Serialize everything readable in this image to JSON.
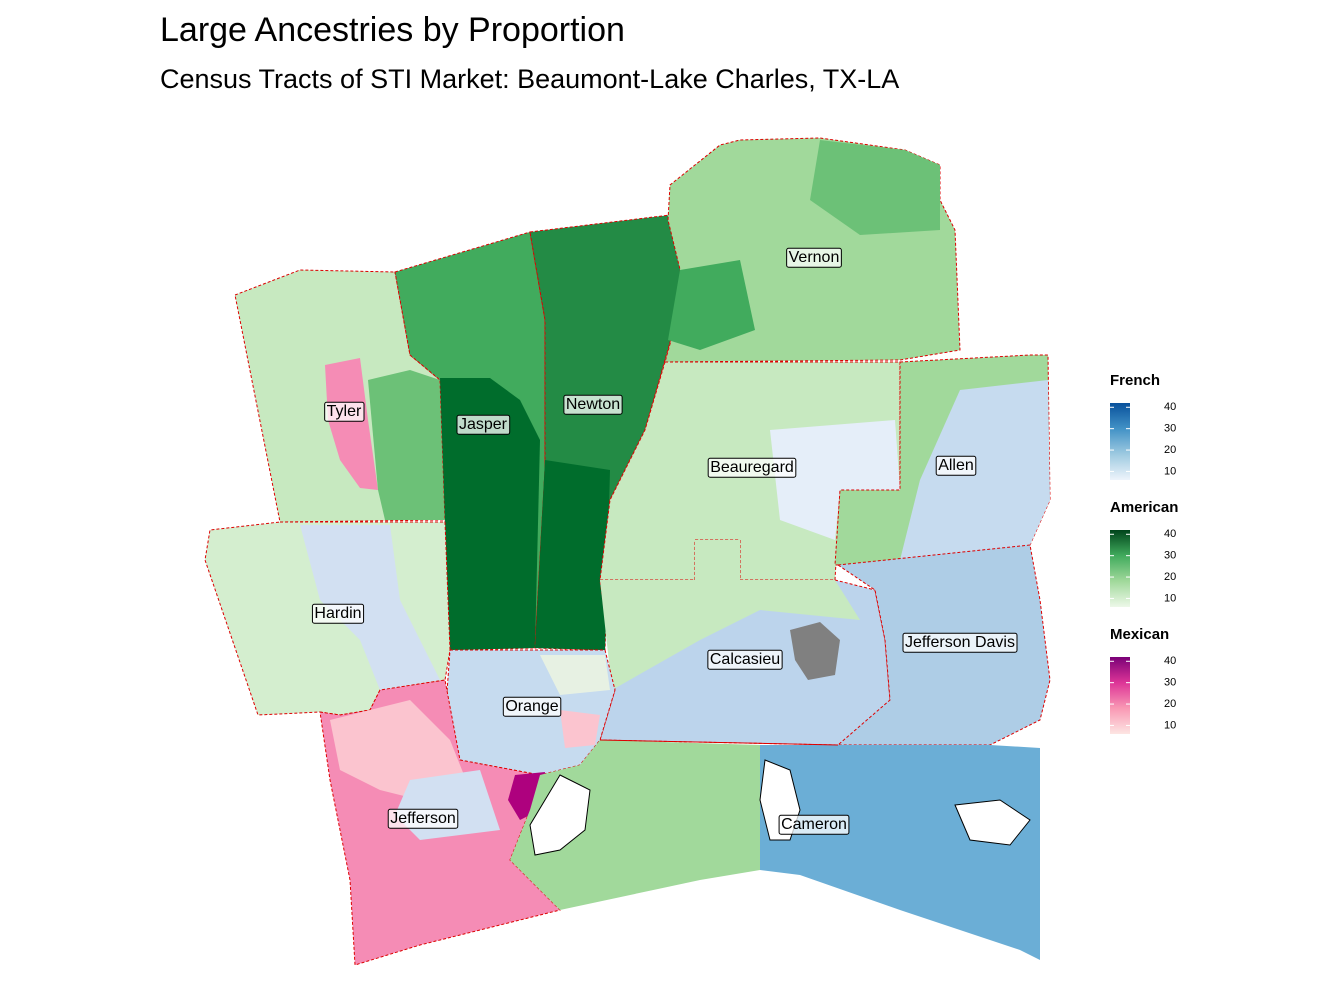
{
  "map": {
    "title": "Large Ancestries by Proportion",
    "subtitle": "Census Tracts of STI Market: Beaumont-Lake Charles, TX-LA",
    "counties": [
      "Vernon",
      "Tyler",
      "Jasper",
      "Newton",
      "Beauregard",
      "Allen",
      "Hardin",
      "Calcasieu",
      "Jefferson Davis",
      "Orange",
      "Jefferson",
      "Cameron"
    ],
    "legends": [
      {
        "title": "French",
        "colors": [
          "#eef4fb",
          "#9ecae1",
          "#4292c6",
          "#08519c"
        ],
        "lim": [
          6,
          42
        ],
        "ticks": [
          10,
          20,
          30,
          40
        ]
      },
      {
        "title": "American",
        "colors": [
          "#edf8e9",
          "#a1d99b",
          "#41ab5d",
          "#00441b"
        ],
        "lim": [
          6,
          42
        ],
        "ticks": [
          10,
          20,
          30,
          40
        ]
      },
      {
        "title": "Mexican",
        "colors": [
          "#fde6e3",
          "#f999b4",
          "#dd3497",
          "#7a0177"
        ],
        "lim": [
          6,
          42
        ],
        "ticks": [
          10,
          20,
          30,
          40
        ]
      }
    ]
  }
}
